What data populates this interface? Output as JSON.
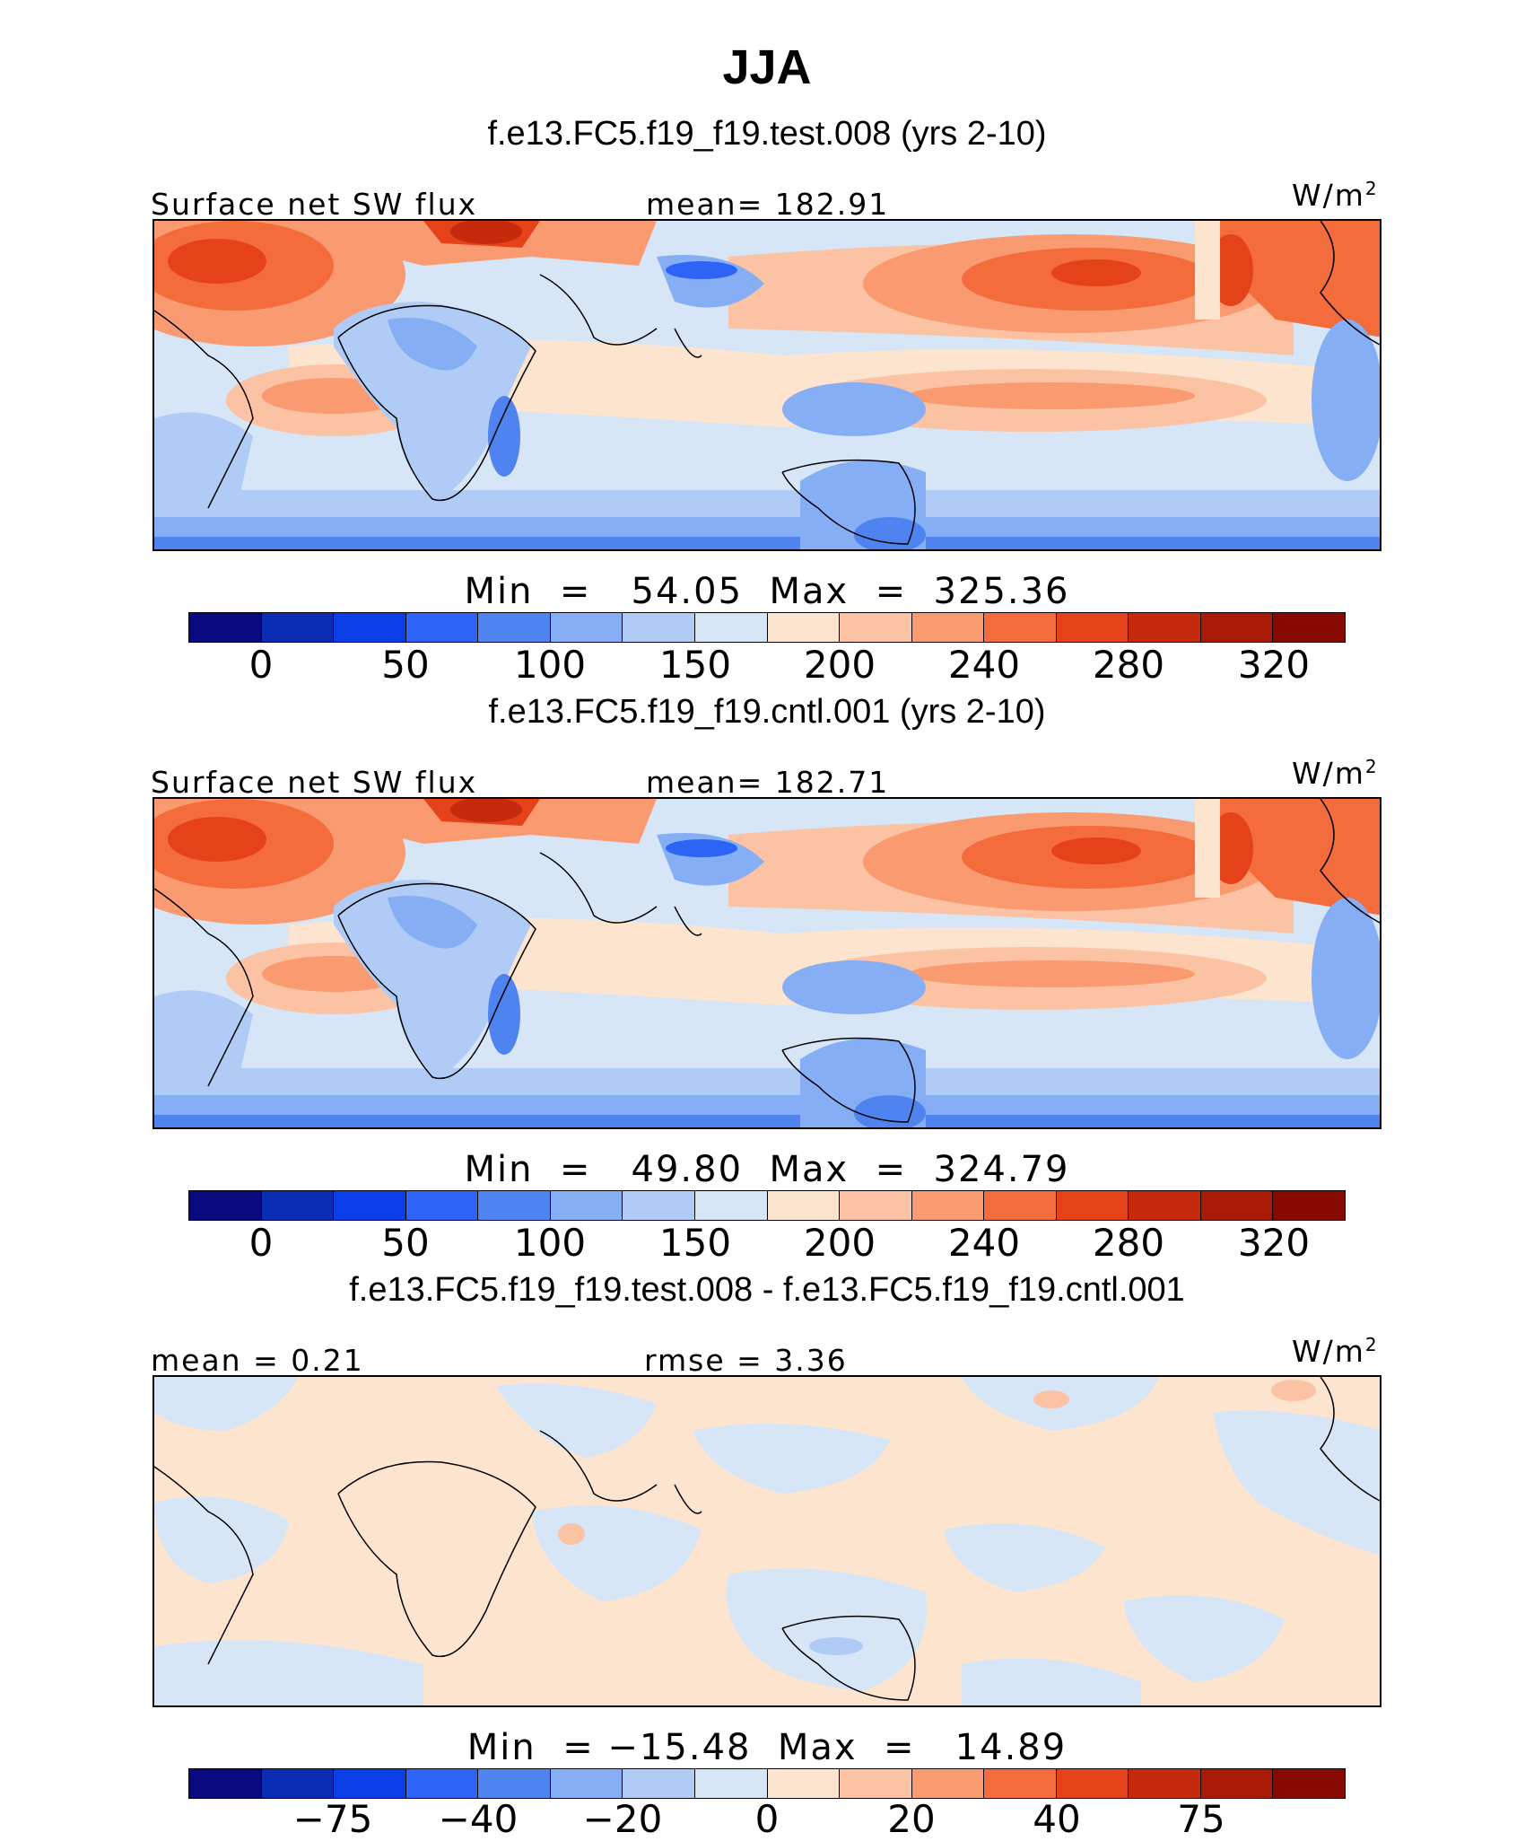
{
  "figure": {
    "season": "JJA"
  },
  "panels": [
    {
      "title": "f.e13.FC5.f19_f19.test.008 (yrs 2-10)",
      "left_label": "Surface net SW flux",
      "center_label": "mean= 182.91",
      "units": "W/m",
      "units_sup": "2",
      "minmax": "Min  =   54.05  Max  =  325.36",
      "ticks": [
        "0",
        "50",
        "100",
        "150",
        "200",
        "240",
        "280",
        "320"
      ]
    },
    {
      "title": "f.e13.FC5.f19_f19.cntl.001 (yrs 2-10)",
      "left_label": "Surface net SW flux",
      "center_label": "mean= 182.71",
      "units": "W/m",
      "units_sup": "2",
      "minmax": "Min  =   49.80  Max  =  324.79",
      "ticks": [
        "0",
        "50",
        "100",
        "150",
        "200",
        "240",
        "280",
        "320"
      ]
    },
    {
      "title": "f.e13.FC5.f19_f19.test.008 - f.e13.FC5.f19_f19.cntl.001",
      "left_label": "mean =    0.21",
      "center_label": "rmse =    3.36",
      "units": "W/m",
      "units_sup": "2",
      "minmax": "Min  = −15.48  Max  =   14.89",
      "ticks": [
        "−75",
        "−40",
        "−20",
        "0",
        "20",
        "40",
        "75"
      ]
    }
  ],
  "colorbar_colors": [
    "#0a0a80",
    "#0a2db4",
    "#0a3ee6",
    "#2d64f5",
    "#4f84f0",
    "#86aef4",
    "#b0cbf6",
    "#d6e6f7",
    "#fde4cf",
    "#fbc3a4",
    "#f99a70",
    "#f46b3c",
    "#e6421a",
    "#c62a0c",
    "#a81a06",
    "#870a00"
  ],
  "map_colors": {
    "ocean_blue": "#d6e6f7",
    "light_blue": "#b0cbf6",
    "mid_blue": "#86aef4",
    "blue": "#4f84f0",
    "deep_blue": "#2d64f5",
    "peach": "#fde4cf",
    "light_orange": "#fbc3a4",
    "orange": "#f99a70",
    "red_orange": "#f46b3c",
    "red": "#e6421a",
    "dark_red": "#c62a0c"
  }
}
